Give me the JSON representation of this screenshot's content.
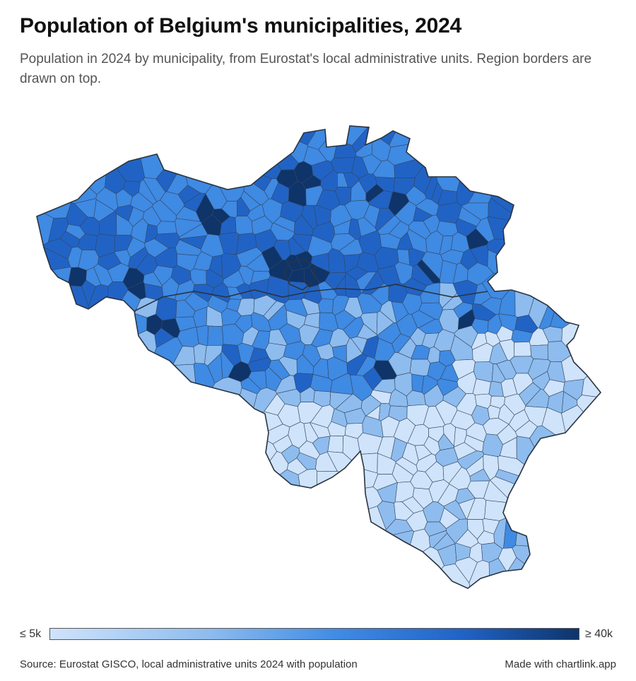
{
  "header": {
    "title": "Population of Belgium's municipalities, 2024",
    "subtitle": "Population in 2024 by municipality, from Eurostat's local administrative units. Region borders are drawn on top."
  },
  "map": {
    "subject": "Belgium municipalities",
    "colors": {
      "min": "#cfe3fb",
      "low": "#8ebcee",
      "mid": "#3f8ae3",
      "high": "#2163c5",
      "max": "#0e346a",
      "border": "#2a3441"
    }
  },
  "legend": {
    "min_label": "≤ 5k",
    "max_label": "≥ 40k"
  },
  "footer": {
    "source": "Source: Eurostat GISCO, local administrative units 2024 with population",
    "credit": "Made with chartlink.app"
  }
}
